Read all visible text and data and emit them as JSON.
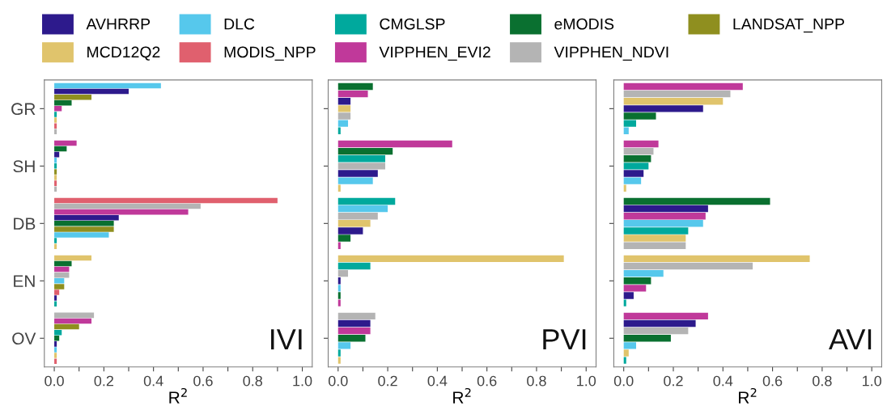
{
  "chart_data": [
    {
      "type": "bar",
      "orientation": "horizontal",
      "categories": [
        "GR",
        "SH",
        "DB",
        "EN",
        "OV"
      ],
      "xlabel": "R$^{2}$",
      "annotations": [
        "IVI"
      ],
      "legend": "top",
      "grid": false,
      "xlim": [
        -0.04,
        1.04
      ],
      "xticks": [
        {
          "value": 0,
          "label": "0.0"
        },
        {
          "value": 0.2,
          "label": "0.2"
        },
        {
          "value": 0.4,
          "label": "0.4"
        },
        {
          "value": 0.6,
          "label": "0.6"
        },
        {
          "value": 0.8,
          "label": "0.8"
        },
        {
          "value": 1,
          "label": "1.0"
        },
        {
          "value": 0.1,
          "label": null
        },
        {
          "value": 0.3,
          "label": null
        },
        {
          "value": 0.5,
          "label": null
        },
        {
          "value": 0.7,
          "label": null
        },
        {
          "value": 0.9,
          "label": null
        }
      ],
      "series": [
        {
          "name": "AVHRRP",
          "color": "#2d1a8c",
          "values": [
            0.3,
            0.02,
            0.26,
            0.01,
            0.01
          ]
        },
        {
          "name": "DLC",
          "color": "#56c8ec",
          "values": [
            0.43,
            0.01,
            0.22,
            0.04,
            0.01
          ]
        },
        {
          "name": "CMGLSP",
          "color": "#00a99d",
          "values": [
            0.01,
            0.01,
            0.01,
            0.01,
            0.03
          ]
        },
        {
          "name": "eMODIS",
          "color": "#0a7030",
          "values": [
            0.07,
            0.05,
            0.24,
            0.07,
            0.02
          ]
        },
        {
          "name": "LANDSAT_NPP",
          "color": "#8f8f1f",
          "values": [
            0.15,
            0.01,
            0.24,
            0.04,
            0.1
          ]
        },
        {
          "name": "MCD12Q2",
          "color": "#e0c46c",
          "values": [
            0.01,
            0.01,
            0.01,
            0.15,
            0.01
          ]
        },
        {
          "name": "MODIS_NPP",
          "color": "#e0606e",
          "values": [
            0.01,
            0.01,
            0.9,
            0.02,
            0.01
          ]
        },
        {
          "name": "VIPPHEN_EVI2",
          "color": "#c0399a",
          "values": [
            0.03,
            0.09,
            0.54,
            0.06,
            0.15
          ]
        },
        {
          "name": "VIPPHEN_NDVI",
          "color": "#b4b4b4",
          "values": [
            0.01,
            0.01,
            0.59,
            0.06,
            0.16
          ]
        }
      ]
    },
    {
      "type": "bar",
      "orientation": "horizontal",
      "categories": [
        null,
        null,
        null,
        null,
        null
      ],
      "xlabel": "R$^{2}$",
      "annotations": [
        "PVI"
      ],
      "tick_labels": "x",
      "grid": false,
      "xlim": [
        -0.04,
        1.04
      ],
      "xticks": [
        {
          "value": 0,
          "label": "0.0"
        },
        {
          "value": 0.2,
          "label": "0.2"
        },
        {
          "value": 0.4,
          "label": "0.4"
        },
        {
          "value": 0.6,
          "label": "0.6"
        },
        {
          "value": 0.8,
          "label": "0.8"
        },
        {
          "value": 1,
          "label": "1.0"
        },
        {
          "value": 0.1,
          "label": null
        },
        {
          "value": 0.3,
          "label": null
        },
        {
          "value": 0.5,
          "label": null
        },
        {
          "value": 0.7,
          "label": null
        },
        {
          "value": 0.9,
          "label": null
        }
      ],
      "series": [
        {
          "color": "#2d1a8c",
          "values": [
            0.05,
            0.16,
            0.1,
            0.01,
            0.13
          ]
        },
        {
          "color": "#56c8ec",
          "values": [
            0.04,
            0.14,
            0.2,
            0.01,
            0.05
          ]
        },
        {
          "color": "#00a99d",
          "values": [
            0.01,
            0.19,
            0.23,
            0.13,
            0.01
          ]
        },
        {
          "color": "#0a7030",
          "values": [
            0.14,
            0.22,
            0.05,
            0.01,
            0.11
          ]
        },
        {
          "color": "#e0c46c",
          "values": [
            0.05,
            0.01,
            0.13,
            0.91,
            0.01
          ]
        },
        {
          "color": "#c0399a",
          "values": [
            0.12,
            0.46,
            0.01,
            0.01,
            0.13
          ]
        },
        {
          "color": "#b4b4b4",
          "values": [
            0.05,
            0.19,
            0.16,
            0.04,
            0.15
          ]
        }
      ]
    },
    {
      "type": "bar",
      "orientation": "horizontal",
      "categories": [
        null,
        null,
        null,
        null,
        null
      ],
      "xlabel": "R$^{2}$",
      "annotations": [
        "AVI"
      ],
      "tick_labels": "x",
      "grid": false,
      "xlim": [
        -0.04,
        1.04
      ],
      "xticks": [
        {
          "value": 0,
          "label": "0.0"
        },
        {
          "value": 0.2,
          "label": "0.2"
        },
        {
          "value": 0.4,
          "label": "0.4"
        },
        {
          "value": 0.6,
          "label": "0.6"
        },
        {
          "value": 0.8,
          "label": "0.8"
        },
        {
          "value": 1,
          "label": "1.0"
        },
        {
          "value": 0.1,
          "label": null
        },
        {
          "value": 0.3,
          "label": null
        },
        {
          "value": 0.5,
          "label": null
        },
        {
          "value": 0.7,
          "label": null
        },
        {
          "value": 0.9,
          "label": null
        }
      ],
      "series": [
        {
          "color": "#2d1a8c",
          "values": [
            0.32,
            0.08,
            0.34,
            0.04,
            0.29
          ]
        },
        {
          "color": "#56c8ec",
          "values": [
            0.02,
            0.07,
            0.32,
            0.16,
            0.05
          ]
        },
        {
          "color": "#00a99d",
          "values": [
            0.05,
            0.1,
            0.26,
            0.01,
            0.01
          ]
        },
        {
          "color": "#0a7030",
          "values": [
            0.13,
            0.11,
            0.59,
            0.11,
            0.19
          ]
        },
        {
          "color": "#e0c46c",
          "values": [
            0.4,
            0.01,
            0.25,
            0.75,
            0.02
          ]
        },
        {
          "color": "#c0399a",
          "values": [
            0.48,
            0.14,
            0.33,
            0.09,
            0.34
          ]
        },
        {
          "color": "#b4b4b4",
          "values": [
            0.43,
            0.12,
            0.25,
            0.52,
            0.26
          ]
        }
      ]
    }
  ]
}
